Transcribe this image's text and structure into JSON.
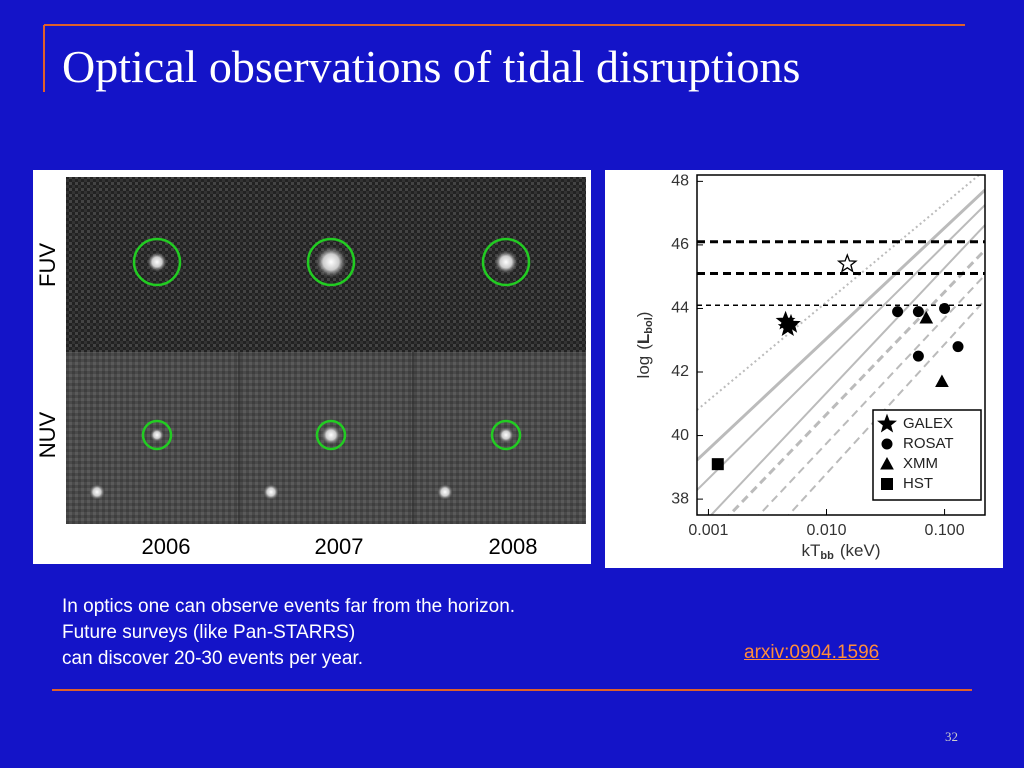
{
  "slide": {
    "title": "Optical observations of tidal disruptions",
    "image_panel": {
      "rows": [
        "FUV",
        "NUV"
      ],
      "columns": [
        "2006",
        "2007",
        "2008"
      ]
    },
    "body": [
      "In optics one can observe events far from the horizon.",
      "Future surveys (like Pan-STARRS)",
      "can discover 20-30 events per year."
    ],
    "link": "arxiv:0904.1596",
    "page_number": "32"
  },
  "chart_data": {
    "type": "scatter",
    "xscale": "log",
    "xlabel": [
      "kT",
      "bb",
      "(keV)"
    ],
    "ylabel": [
      "log",
      "(",
      "L",
      "bol",
      ")"
    ],
    "xlim": [
      0.0008,
      0.22
    ],
    "ylim": [
      37.5,
      48.2
    ],
    "xticks": [
      0.001,
      {
        "value": 0.01,
        "label": "0.010"
      },
      {
        "value": 0.1,
        "label": "0.100"
      }
    ],
    "yticks": [
      38,
      40,
      42,
      44,
      46,
      48
    ],
    "hlines": [
      46.1,
      45.1,
      44.1
    ],
    "legend": "lower right",
    "series": [
      {
        "name": "GALEX",
        "marker": "star",
        "color": "#000000",
        "x": [
          0.0045,
          0.0047,
          0.005
        ],
        "values": [
          43.6,
          43.4,
          43.5
        ]
      },
      {
        "name": "ROSAT",
        "marker": "circle",
        "color": "#000000",
        "x": [
          0.04,
          0.06,
          0.1,
          0.06,
          0.13
        ],
        "values": [
          43.9,
          43.9,
          44.0,
          42.5,
          42.8
        ]
      },
      {
        "name": "XMM",
        "marker": "triangle",
        "color": "#000000",
        "x": [
          0.07,
          0.095
        ],
        "values": [
          43.7,
          41.7
        ]
      },
      {
        "name": "HST",
        "marker": "square",
        "color": "#000000",
        "x": [
          0.0012
        ],
        "values": [
          39.1
        ]
      }
    ],
    "open_points": {
      "marker": "star",
      "x": [
        0.015
      ],
      "values": [
        45.4
      ]
    }
  }
}
